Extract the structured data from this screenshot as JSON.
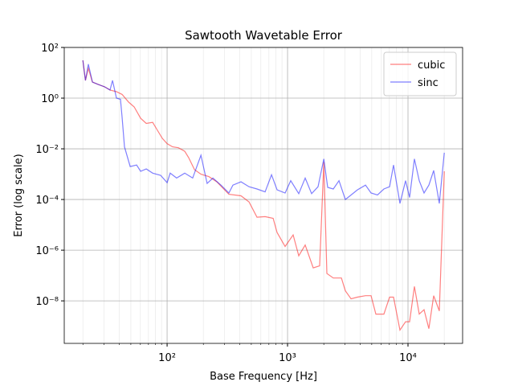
{
  "chart_data": {
    "type": "line",
    "title": "Sawtooth Wavetable Error",
    "xlabel": "Base Frequency [Hz]",
    "ylabel": "Error (log scale)",
    "xscale": "log",
    "yscale": "log",
    "grid": true,
    "legend": "upper right",
    "xlim": [
      14,
      28400
    ],
    "ylim": [
      2.1e-10,
      100
    ],
    "xticks": [
      {
        "value": 100,
        "label": "10²"
      },
      {
        "value": 1000,
        "label": "10³"
      },
      {
        "value": 10000,
        "label": "10⁴"
      }
    ],
    "yticks": [
      {
        "value": 1e-08,
        "label": "10⁻⁸"
      },
      {
        "value": 1e-06,
        "label": "10⁻⁶"
      },
      {
        "value": 0.0001,
        "label": "10⁻⁴"
      },
      {
        "value": 0.01,
        "label": "10⁻²"
      },
      {
        "value": 1,
        "label": "10⁰"
      },
      {
        "value": 100,
        "label": "10²"
      }
    ],
    "series": [
      {
        "name": "cubic",
        "color": "#ff0000",
        "x": [
          20,
          21,
          22.2,
          24,
          26.7,
          30.2,
          33.6,
          38,
          42.3,
          47.9,
          53.3,
          60.3,
          67.1,
          75.9,
          81.9,
          91.2,
          100,
          111,
          124,
          140,
          151,
          169,
          191,
          222,
          259,
          326,
          411,
          479,
          558,
          651,
          759,
          819,
          955,
          1113,
          1240,
          1401,
          1634,
          1848,
          2000,
          2121,
          2399,
          2798,
          3020,
          3365,
          3802,
          4436,
          4937,
          5412,
          6310,
          7031,
          7586,
          8577,
          9550,
          10310,
          11300,
          12400,
          13590,
          14900,
          16330,
          18200,
          20000
        ],
        "values": [
          31,
          5,
          15,
          4.3,
          3.5,
          2.8,
          2.1,
          1.8,
          1.4,
          0.7,
          0.45,
          0.16,
          0.1,
          0.11,
          0.06,
          0.026,
          0.016,
          0.012,
          0.011,
          0.008,
          0.0045,
          0.0015,
          0.001,
          0.0008,
          0.0005,
          0.00016,
          0.00014,
          8e-05,
          2e-05,
          2.1e-05,
          1.8e-05,
          5e-06,
          1.4e-06,
          4e-06,
          6e-07,
          1.6e-06,
          2e-07,
          2.4e-07,
          0.003,
          1.2e-07,
          8e-08,
          8e-08,
          2.5e-08,
          1.2e-08,
          1.4e-08,
          1.6e-08,
          1.6e-08,
          3e-09,
          3e-09,
          1.4e-08,
          1.4e-08,
          7e-10,
          1.5e-09,
          1.5e-09,
          3.7e-08,
          3e-09,
          4.5e-09,
          8e-10,
          1.6e-08,
          4e-09,
          0.0013
        ]
      },
      {
        "name": "sinc",
        "color": "#0000ff",
        "x": [
          20,
          21,
          22.2,
          24,
          26.7,
          30.2,
          33.6,
          35.2,
          38,
          41,
          42.3,
          44.3,
          49.4,
          55.8,
          60.3,
          67.1,
          75.9,
          88.4,
          100,
          106,
          120,
          140,
          163,
          191,
          215,
          240,
          280,
          326,
          352,
          411,
          479,
          558,
          651,
          736,
          819,
          955,
          1063,
          1240,
          1401,
          1585,
          1791,
          2000,
          2154,
          2399,
          2672,
          3020,
          3365,
          3802,
          4436,
          4937,
          5581,
          6310,
          7031,
          7586,
          8577,
          9550,
          10310,
          11300,
          12400,
          13590,
          14900,
          16330,
          18200,
          20000
        ],
        "values": [
          31,
          5,
          22,
          4.3,
          3.5,
          2.8,
          2.1,
          5,
          1.0,
          0.9,
          0.18,
          0.012,
          0.002,
          0.0023,
          0.0013,
          0.0016,
          0.0011,
          0.0009,
          0.00046,
          0.0011,
          0.0007,
          0.0011,
          0.0007,
          0.0056,
          0.00043,
          0.0007,
          0.00037,
          0.00018,
          0.00037,
          0.0005,
          0.00032,
          0.00026,
          0.0002,
          0.00095,
          0.00024,
          0.00018,
          0.00055,
          0.00017,
          0.0007,
          0.00017,
          0.00032,
          0.004,
          0.0003,
          0.00026,
          0.00055,
          0.0001,
          0.00015,
          0.00024,
          0.00037,
          0.00018,
          0.00015,
          0.00026,
          0.00032,
          0.0023,
          7e-05,
          0.00055,
          0.00012,
          0.004,
          0.00055,
          0.00018,
          0.00037,
          0.0014,
          7e-05,
          0.007
        ]
      }
    ]
  }
}
